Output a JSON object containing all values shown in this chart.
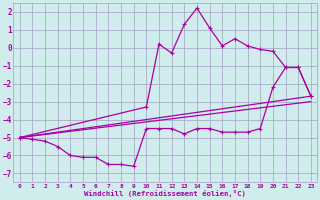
{
  "xlabel": "Windchill (Refroidissement éolien,°C)",
  "bg_color": "#d0ecec",
  "grid_color": "#a0a0c0",
  "line_color": "#aa00aa",
  "xlim": [
    -0.5,
    23.5
  ],
  "ylim": [
    -7.5,
    2.5
  ],
  "xticks": [
    0,
    1,
    2,
    3,
    4,
    5,
    6,
    7,
    8,
    9,
    10,
    11,
    12,
    13,
    14,
    15,
    16,
    17,
    18,
    19,
    20,
    21,
    22,
    23
  ],
  "yticks": [
    -7,
    -6,
    -5,
    -4,
    -3,
    -2,
    -1,
    0,
    1,
    2
  ],
  "series": {
    "line_upper_wiggly": {
      "x": [
        0,
        10,
        11,
        12,
        13,
        14,
        15,
        16,
        17,
        18,
        19,
        20,
        21,
        22,
        23
      ],
      "y": [
        -5.0,
        -3.3,
        0.2,
        -0.3,
        1.3,
        2.2,
        1.1,
        0.1,
        0.5,
        0.1,
        -0.1,
        -0.2,
        -1.1,
        -1.1,
        -2.7
      ]
    },
    "line_lower_wiggly": {
      "x": [
        0,
        1,
        2,
        3,
        4,
        5,
        6,
        7,
        8,
        9,
        10,
        11,
        12,
        13,
        14,
        15,
        16,
        17,
        18,
        19,
        20,
        21,
        22,
        23
      ],
      "y": [
        -5.0,
        -5.1,
        -5.2,
        -5.5,
        -6.0,
        -6.1,
        -6.1,
        -6.5,
        -6.5,
        -6.6,
        -4.5,
        -4.5,
        -4.5,
        -4.8,
        -4.5,
        -4.5,
        -4.7,
        -4.7,
        -4.7,
        -4.5,
        -2.2,
        -1.1,
        -1.1,
        -2.7
      ]
    },
    "line_smooth_upper": {
      "x": [
        0,
        23
      ],
      "y": [
        -5.0,
        -2.7
      ]
    },
    "line_smooth_lower": {
      "x": [
        0,
        23
      ],
      "y": [
        -5.0,
        -3.0
      ]
    }
  }
}
